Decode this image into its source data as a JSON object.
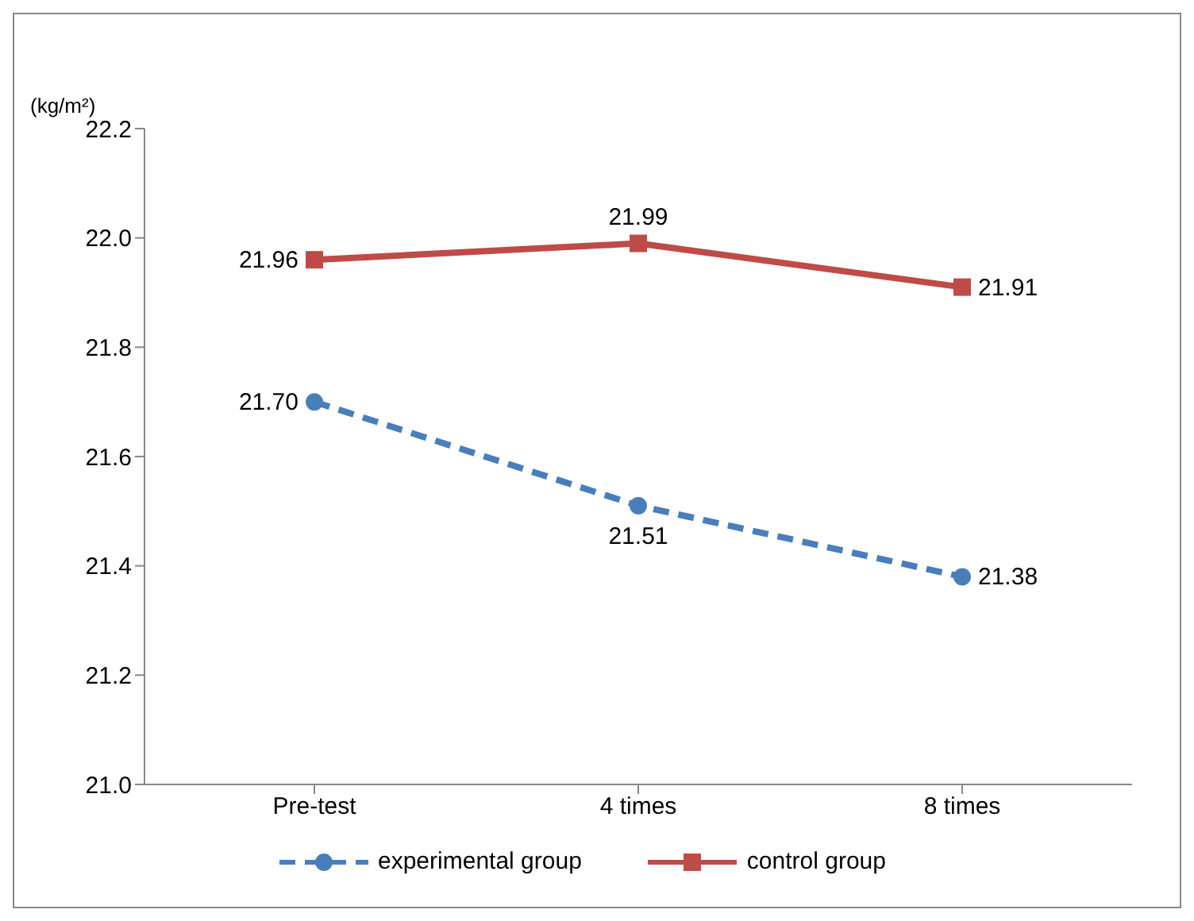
{
  "chart_data": {
    "type": "line",
    "ylabel": "(kg/m²)",
    "categories": [
      "Pre-test",
      "4 times",
      "8 times"
    ],
    "series": [
      {
        "name": "experimental group",
        "color": "#4a7ebb",
        "values": [
          21.7,
          21.51,
          21.38
        ],
        "value_labels": [
          "21.70",
          "21.51",
          "21.38"
        ],
        "marker": "circle",
        "line_style": "dashed"
      },
      {
        "name": "control group",
        "color": "#be4b48",
        "values": [
          21.96,
          21.99,
          21.91
        ],
        "value_labels": [
          "21.96",
          "21.99",
          "21.91"
        ],
        "marker": "square",
        "line_style": "solid"
      }
    ],
    "ylim": [
      21.0,
      22.2
    ],
    "yticks": [
      {
        "value": 21.0,
        "label": "21.0"
      },
      {
        "value": 21.2,
        "label": "21.2"
      },
      {
        "value": 21.4,
        "label": "21.4"
      },
      {
        "value": 21.6,
        "label": "21.6"
      },
      {
        "value": 21.8,
        "label": "21.8"
      },
      {
        "value": 22.0,
        "label": "22.0"
      },
      {
        "value": 22.2,
        "label": "22.2"
      }
    ],
    "grid": false,
    "legend": "bottom"
  }
}
